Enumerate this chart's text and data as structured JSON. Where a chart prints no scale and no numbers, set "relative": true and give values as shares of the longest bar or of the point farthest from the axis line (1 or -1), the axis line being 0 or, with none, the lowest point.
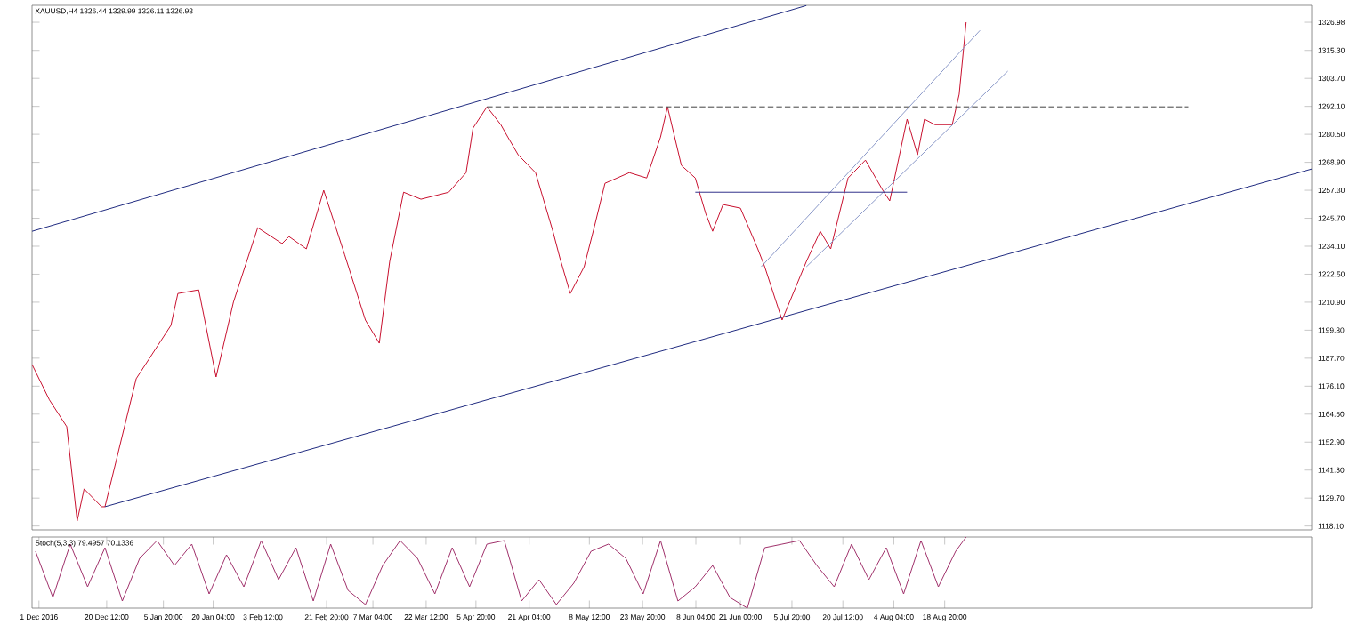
{
  "chart_data": [
    {
      "type": "line",
      "title": "XAUUSD,H4 1326.44 1329.99 1326.11 1326.98",
      "xlim": [
        "2016-11-29",
        "2017-12-02T12:00"
      ],
      "ylim": [
        1116.5,
        1334
      ],
      "yticks": [
        {
          "value": 1118.1,
          "label": "1118.10"
        },
        {
          "value": 1129.7,
          "label": "1129.70"
        },
        {
          "value": 1141.3,
          "label": "1141.30"
        },
        {
          "value": 1152.9,
          "label": "1152.90"
        },
        {
          "value": 1164.5,
          "label": "1164.50"
        },
        {
          "value": 1176.1,
          "label": "1176.10"
        },
        {
          "value": 1187.7,
          "label": "1187.70"
        },
        {
          "value": 1199.3,
          "label": "1199.30"
        },
        {
          "value": 1210.9,
          "label": "1210.90"
        },
        {
          "value": 1222.5,
          "label": "1222.50"
        },
        {
          "value": 1234.1,
          "label": "1234.10"
        },
        {
          "value": 1245.7,
          "label": "1245.70"
        },
        {
          "value": 1257.3,
          "label": "1257.30"
        },
        {
          "value": 1268.9,
          "label": "1268.90"
        },
        {
          "value": 1280.5,
          "label": "1280.50"
        },
        {
          "value": 1292.1,
          "label": "1292.10"
        },
        {
          "value": 1303.7,
          "label": "1303.70"
        },
        {
          "value": 1315.3,
          "label": "1315.30"
        },
        {
          "value": 1326.98,
          "label": "1326.98"
        }
      ],
      "tick_labels": "y",
      "series": [
        {
          "color": "#c8102e",
          "x": [
            "2016-11-29",
            "2016-12-04",
            "2016-12-09",
            "2016-12-12",
            "2016-12-14",
            "2016-12-19",
            "2016-12-20",
            "2016-12-29",
            "2017-01-08",
            "2017-01-10",
            "2017-01-16",
            "2017-01-21",
            "2017-01-26",
            "2017-01-31",
            "2017-02-02",
            "2017-02-09",
            "2017-02-11",
            "2017-02-16",
            "2017-02-21",
            "2017-02-24",
            "2017-02-27",
            "2017-03-05",
            "2017-03-09",
            "2017-03-12",
            "2017-03-16",
            "2017-03-21",
            "2017-03-29",
            "2017-04-03",
            "2017-04-05",
            "2017-04-09",
            "2017-04-13",
            "2017-04-15",
            "2017-04-18",
            "2017-04-23",
            "2017-04-28",
            "2017-04-30",
            "2017-05-03",
            "2017-05-07",
            "2017-05-10",
            "2017-05-13",
            "2017-05-20",
            "2017-05-25",
            "2017-05-29",
            "2017-05-31",
            "2017-06-04",
            "2017-06-08",
            "2017-06-11",
            "2017-06-13",
            "2017-06-16",
            "2017-06-21",
            "2017-06-26",
            "2017-06-28",
            "2017-07-03",
            "2017-07-10",
            "2017-07-14",
            "2017-07-17",
            "2017-07-22",
            "2017-07-27",
            "2017-08-01",
            "2017-08-03",
            "2017-08-08",
            "2017-08-11",
            "2017-08-13",
            "2017-08-16",
            "2017-08-21",
            "2017-08-23",
            "2017-08-25"
          ],
          "values": [
            1185.1,
            1170.4,
            1159.3,
            1120.2,
            1133.5,
            1126.1,
            1126.1,
            1179.2,
            1201.3,
            1214.5,
            1216,
            1179.9,
            1210.9,
            1233,
            1241.8,
            1235.2,
            1238.1,
            1233,
            1257.3,
            1244,
            1230.7,
            1203.5,
            1193.9,
            1227.8,
            1256.5,
            1253.6,
            1256.5,
            1264.6,
            1283.1,
            1291.9,
            1284.5,
            1279.4,
            1272,
            1264.6,
            1240.3,
            1229.3,
            1214.5,
            1225.6,
            1242.5,
            1260.2,
            1264.6,
            1262.4,
            1279.4,
            1291.9,
            1267.6,
            1262.4,
            1247.7,
            1240.3,
            1251.4,
            1249.9,
            1233,
            1225.6,
            1203.5,
            1227.8,
            1240.3,
            1233,
            1262.4,
            1269.8,
            1257.3,
            1252.9,
            1286.8,
            1272,
            1286.8,
            1284.5,
            1284.5,
            1297.1,
            1327
          ]
        },
        {
          "color": "#1f2a80",
          "x": [
            "2016-11-29",
            "2017-07-10"
          ],
          "values": [
            1240.3,
            1333.9
          ]
        },
        {
          "color": "#1f2a80",
          "x": [
            "2016-12-20",
            "2017-12-02T12:00"
          ],
          "values": [
            1126.1,
            1266.1
          ]
        },
        {
          "color": "#8a98c8",
          "x": [
            "2017-06-27",
            "2017-08-29"
          ],
          "values": [
            1225.6,
            1323.6
          ]
        },
        {
          "color": "#8a98c8",
          "x": [
            "2017-07-10",
            "2017-09-06"
          ],
          "values": [
            1225.6,
            1306.7
          ]
        },
        {
          "color": "#30308a",
          "x": [
            "2017-06-08",
            "2017-08-08"
          ],
          "values": [
            1256.5,
            1256.5
          ]
        },
        {
          "color": "#404040",
          "line_style": "dashed",
          "x": [
            "2017-04-09",
            "2017-10-28"
          ],
          "values": [
            1291.9,
            1291.9
          ]
        }
      ]
    },
    {
      "type": "line",
      "title": "Stoch(5,3,3) 79.4957 70.1336",
      "relative": true,
      "color": "#a0306a",
      "xlim": [
        "2016-11-29",
        "2017-12-02T12:00"
      ],
      "tick_labels": "x",
      "xticks": [
        {
          "value": "2016-12-01",
          "label": "1 Dec 2016"
        },
        {
          "value": "2016-12-20T12:00",
          "label": "20 Dec 12:00"
        },
        {
          "value": "2017-01-05T20:00",
          "label": "5 Jan 20:00"
        },
        {
          "value": "2017-01-20T04:00",
          "label": "20 Jan 04:00"
        },
        {
          "value": "2017-02-03T12:00",
          "label": "3 Feb 12:00"
        },
        {
          "value": "2017-02-21T20:00",
          "label": "21 Feb 20:00"
        },
        {
          "value": "2017-03-07T04:00",
          "label": "7 Mar 04:00"
        },
        {
          "value": "2017-03-22T12:00",
          "label": "22 Mar 12:00"
        },
        {
          "value": "2017-04-05T20:00",
          "label": "5 Apr 20:00"
        },
        {
          "value": "2017-04-21T04:00",
          "label": "21 Apr 04:00"
        },
        {
          "value": "2017-05-08T12:00",
          "label": "8 May 12:00"
        },
        {
          "value": "2017-05-23T20:00",
          "label": "23 May 20:00"
        },
        {
          "value": "2017-06-08T04:00",
          "label": "8 Jun 04:00"
        },
        {
          "value": "2017-06-21T00:00",
          "label": "21 Jun 00:00"
        },
        {
          "value": "2017-07-05T20:00",
          "label": "5 Jul 20:00"
        },
        {
          "value": "2017-07-20T12:00",
          "label": "20 Jul 12:00"
        },
        {
          "value": "2017-08-04T04:00",
          "label": "4 Aug 04:00"
        },
        {
          "value": "2017-08-18T20:00",
          "label": "18 Aug 20:00"
        }
      ],
      "x": [
        "2016-11-30",
        "2016-12-05",
        "2016-12-10",
        "2016-12-15",
        "2016-12-20",
        "2016-12-25",
        "2016-12-30",
        "2017-01-04",
        "2017-01-09",
        "2017-01-14",
        "2017-01-19",
        "2017-01-24",
        "2017-01-29",
        "2017-02-03",
        "2017-02-08",
        "2017-02-13",
        "2017-02-18",
        "2017-02-23",
        "2017-02-28",
        "2017-03-05",
        "2017-03-10",
        "2017-03-15",
        "2017-03-20",
        "2017-03-25",
        "2017-03-30",
        "2017-04-04",
        "2017-04-09",
        "2017-04-14",
        "2017-04-19",
        "2017-04-24",
        "2017-04-29",
        "2017-05-04",
        "2017-05-09",
        "2017-05-14",
        "2017-05-19",
        "2017-05-24",
        "2017-05-29",
        "2017-06-03",
        "2017-06-08",
        "2017-06-13",
        "2017-06-18",
        "2017-06-23",
        "2017-06-28",
        "2017-07-03",
        "2017-07-08",
        "2017-07-13",
        "2017-07-18",
        "2017-07-23",
        "2017-07-28",
        "2017-08-02",
        "2017-08-07",
        "2017-08-12",
        "2017-08-17",
        "2017-08-22",
        "2017-08-25"
      ],
      "values": [
        0.8,
        0.15,
        0.9,
        0.3,
        0.85,
        0.1,
        0.7,
        0.95,
        0.6,
        0.9,
        0.2,
        0.75,
        0.3,
        0.95,
        0.4,
        0.85,
        0.1,
        0.9,
        0.25,
        0.05,
        0.6,
        0.95,
        0.7,
        0.2,
        0.85,
        0.3,
        0.9,
        0.95,
        0.1,
        0.4,
        0.05,
        0.35,
        0.8,
        0.9,
        0.7,
        0.2,
        0.95,
        0.1,
        0.3,
        0.6,
        0.15,
        0.0,
        0.85,
        0.9,
        0.95,
        0.6,
        0.3,
        0.9,
        0.4,
        0.85,
        0.2,
        0.95,
        0.3,
        0.8,
        1.0
      ]
    }
  ]
}
